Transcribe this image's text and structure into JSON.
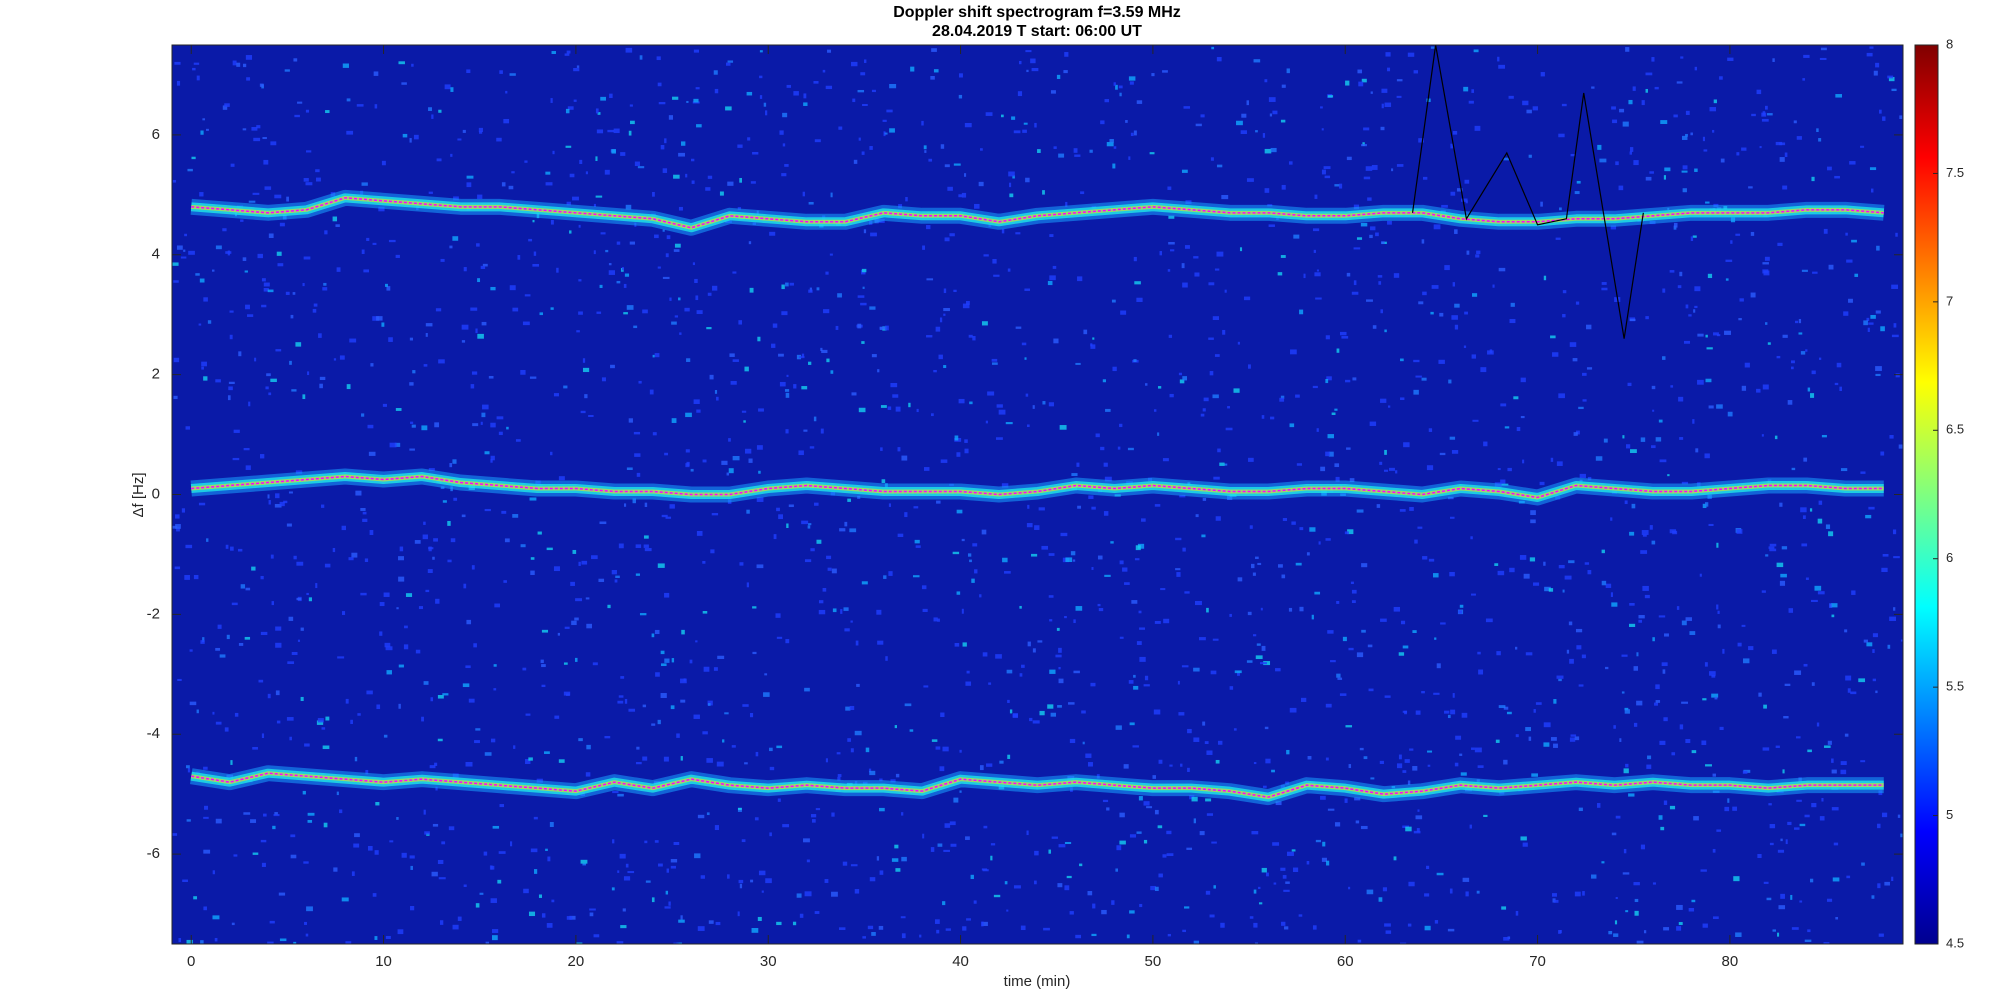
{
  "chart_data": {
    "type": "spectrogram",
    "title": "Doppler shift spectrogram f=3.59 MHz",
    "subtitle": "28.04.2019   T start: 06:00 UT",
    "xlabel": "time (min)",
    "ylabel": "Δf [Hz]",
    "xlim": [
      -1,
      89
    ],
    "xticks": [
      0,
      10,
      20,
      30,
      40,
      50,
      60,
      70,
      80
    ],
    "ylim": [
      -7.5,
      7.5
    ],
    "yticks": [
      -6,
      -4,
      -2,
      0,
      2,
      4,
      6
    ],
    "clim": [
      4.5,
      8
    ],
    "cticks": [
      4.5,
      5,
      5.5,
      6,
      6.5,
      7,
      7.5,
      8
    ],
    "colormap": "jet",
    "x": [
      0,
      2,
      4,
      6,
      8,
      10,
      12,
      14,
      16,
      18,
      20,
      22,
      24,
      26,
      28,
      30,
      32,
      34,
      36,
      38,
      40,
      42,
      44,
      46,
      48,
      50,
      52,
      54,
      56,
      58,
      60,
      62,
      64,
      66,
      68,
      70,
      72,
      74,
      76,
      78,
      80,
      82,
      84,
      86,
      88
    ],
    "series": [
      {
        "color": "#ff00ff",
        "values": [
          4.8,
          4.75,
          4.7,
          4.75,
          4.95,
          4.9,
          4.85,
          4.8,
          4.8,
          4.75,
          4.7,
          4.65,
          4.6,
          4.45,
          4.65,
          4.6,
          4.55,
          4.55,
          4.7,
          4.65,
          4.65,
          4.55,
          4.65,
          4.7,
          4.75,
          4.8,
          4.75,
          4.7,
          4.7,
          4.65,
          4.65,
          4.7,
          4.7,
          4.6,
          4.55,
          4.55,
          4.6,
          4.6,
          4.65,
          4.7,
          4.7,
          4.7,
          4.75,
          4.75,
          4.7
        ]
      },
      {
        "color": "#ff00ff",
        "values": [
          0.1,
          0.15,
          0.2,
          0.25,
          0.3,
          0.25,
          0.3,
          0.2,
          0.15,
          0.1,
          0.1,
          0.05,
          0.05,
          0.0,
          0.0,
          0.1,
          0.15,
          0.1,
          0.05,
          0.05,
          0.05,
          0.0,
          0.05,
          0.15,
          0.1,
          0.15,
          0.1,
          0.05,
          0.05,
          0.1,
          0.1,
          0.05,
          0.0,
          0.1,
          0.05,
          -0.05,
          0.15,
          0.1,
          0.05,
          0.05,
          0.1,
          0.15,
          0.15,
          0.1,
          0.1
        ]
      },
      {
        "color": "#ff00ff",
        "values": [
          -4.7,
          -4.8,
          -4.65,
          -4.7,
          -4.75,
          -4.8,
          -4.75,
          -4.8,
          -4.85,
          -4.9,
          -4.95,
          -4.8,
          -4.9,
          -4.75,
          -4.85,
          -4.9,
          -4.85,
          -4.9,
          -4.9,
          -4.95,
          -4.75,
          -4.8,
          -4.85,
          -4.8,
          -4.85,
          -4.9,
          -4.9,
          -4.95,
          -5.05,
          -4.85,
          -4.9,
          -5.0,
          -4.95,
          -4.85,
          -4.9,
          -4.85,
          -4.8,
          -4.85,
          -4.8,
          -4.85,
          -4.85,
          -4.9,
          -4.85,
          -4.85,
          -4.85
        ]
      }
    ],
    "trace": {
      "color": "#000000",
      "x": [
        63.5,
        64.7,
        66.3,
        68.4,
        70,
        71.5,
        72.4,
        74.5,
        75.5
      ],
      "values": [
        4.7,
        7.5,
        4.6,
        5.7,
        4.5,
        4.6,
        6.7,
        2.6,
        4.7
      ]
    }
  }
}
